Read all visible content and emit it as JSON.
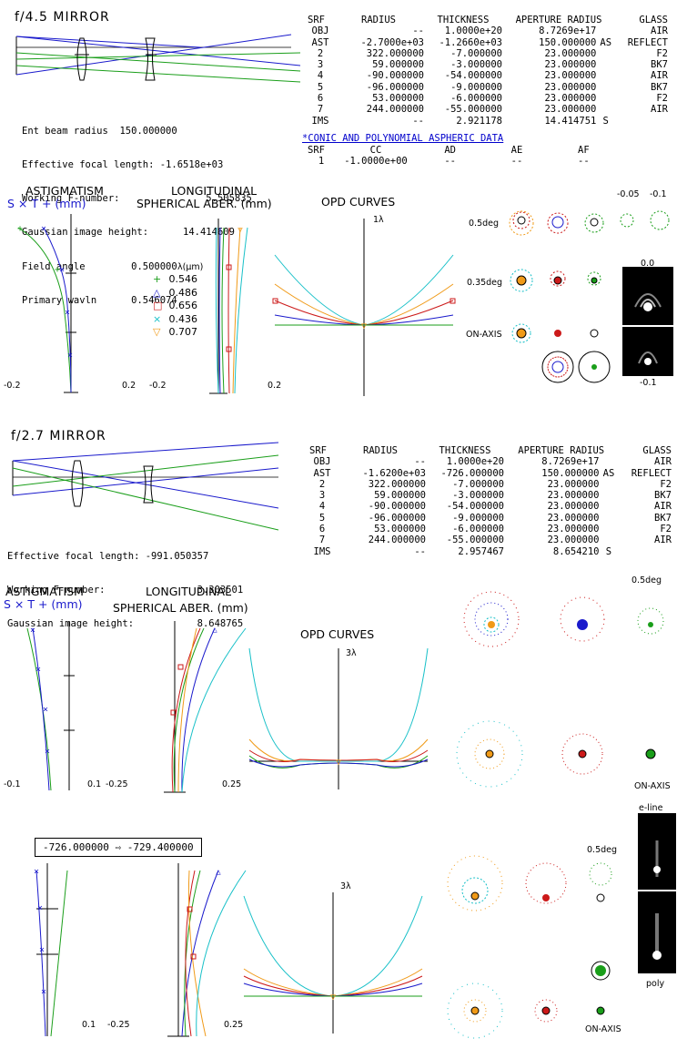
{
  "section1": {
    "title": "f/4.5 MIRROR",
    "specs": [
      {
        "label": "Ent beam radius",
        "value": "150.000000"
      },
      {
        "label": "Effective focal length:",
        "value": "-1.6518e+03"
      },
      {
        "label": "Working F-number:",
        "value": "5.505835"
      },
      {
        "label": "Gaussian image height:",
        "value": "14.414609"
      },
      {
        "label": "Field angle",
        "value": "0.500000"
      },
      {
        "label": "Primary wavln",
        "value": "0.546074"
      }
    ],
    "table_headers": [
      "SRF",
      "RADIUS",
      "THICKNESS",
      "APERTURE RADIUS",
      "GLASS"
    ],
    "table_rows": [
      [
        "OBJ",
        "--",
        "1.0000e+20",
        "8.7269e+17",
        "",
        "AIR"
      ],
      [
        "AST",
        "-2.7000e+03",
        "-1.2660e+03",
        "150.000000",
        "AS",
        "REFLECT"
      ],
      [
        "2",
        "322.000000",
        "-7.000000",
        "23.000000",
        "",
        "F2"
      ],
      [
        "3",
        "59.000000",
        "-3.000000",
        "23.000000",
        "",
        "BK7"
      ],
      [
        "4",
        "-90.000000",
        "-54.000000",
        "23.000000",
        "",
        "AIR"
      ],
      [
        "5",
        "-96.000000",
        "-9.000000",
        "23.000000",
        "",
        "BK7"
      ],
      [
        "6",
        "53.000000",
        "-6.000000",
        "23.000000",
        "",
        "F2"
      ],
      [
        "7",
        "244.000000",
        "-55.000000",
        "23.000000",
        "",
        "AIR"
      ],
      [
        "IMS",
        "--",
        "2.921178",
        "14.414751",
        "S",
        ""
      ]
    ],
    "conic_title": "*CONIC AND POLYNOMIAL ASPHERIC DATA",
    "conic_headers": [
      "SRF",
      "CC",
      "AD",
      "AE",
      "AF"
    ],
    "conic_row": [
      "1",
      "-1.0000e+00",
      "--",
      "--",
      "--"
    ],
    "astig_title_1": "ASTIGMATISM",
    "astig_title_2": "S × T + (mm)",
    "long_title_1": "LONGITUDINAL",
    "long_title_2": "SPHERICAL ABER. (mm)",
    "opd_title": "OPD CURVES",
    "opd_scale": "1λ",
    "astig_ticks": [
      "-0.2",
      "0.2"
    ],
    "long_ticks": [
      "-0.2",
      "0.2"
    ],
    "legend_title": "λ(μm)",
    "legend": [
      {
        "symbol": "+",
        "label": "0.546",
        "color": "#1a9e1a"
      },
      {
        "symbol": "△",
        "label": "0.486",
        "color": "#1a1acc"
      },
      {
        "symbol": "□",
        "label": "0.656",
        "color": "#cc1a1a"
      },
      {
        "symbol": "×",
        "label": "0.436",
        "color": "#18c0c8"
      },
      {
        "symbol": "▽",
        "label": "0.707",
        "color": "#f09a18"
      }
    ],
    "spot_labels": [
      "0.5deg",
      "0.35deg",
      "ON-AXIS"
    ],
    "defocus_labels": [
      "-0.05",
      "-0.1"
    ],
    "psf_labels": [
      "0.0",
      "-0.1"
    ]
  },
  "section2": {
    "title": "f/2.7 MIRROR",
    "specs": [
      {
        "label": "Effective focal length:",
        "value": "-991.050357"
      },
      {
        "label": "Working F-number:",
        "value": "3.303501"
      },
      {
        "label": "Gaussian image height:",
        "value": "8.648765"
      }
    ],
    "table_headers": [
      "SRF",
      "RADIUS",
      "THICKNESS",
      "APERTURE RADIUS",
      "GLASS"
    ],
    "table_rows": [
      [
        "OBJ",
        "--",
        "1.0000e+20",
        "8.7269e+17",
        "",
        "AIR"
      ],
      [
        "AST",
        "-1.6200e+03",
        "-726.000000",
        "150.000000",
        "AS",
        "REFLECT"
      ],
      [
        "2",
        "322.000000",
        "-7.000000",
        "23.000000",
        "",
        "F2"
      ],
      [
        "3",
        "59.000000",
        "-3.000000",
        "23.000000",
        "",
        "BK7"
      ],
      [
        "4",
        "-90.000000",
        "-54.000000",
        "23.000000",
        "",
        "AIR"
      ],
      [
        "5",
        "-96.000000",
        "-9.000000",
        "23.000000",
        "",
        "BK7"
      ],
      [
        "6",
        "53.000000",
        "-6.000000",
        "23.000000",
        "",
        "F2"
      ],
      [
        "7",
        "244.000000",
        "-55.000000",
        "23.000000",
        "",
        "AIR"
      ],
      [
        "IMS",
        "--",
        "2.957467",
        "8.654210",
        "S",
        ""
      ]
    ],
    "astig_title_1": "ASTIGMATISM",
    "astig_title_2": "S × T + (mm)",
    "long_title_1": "LONGITUDINAL",
    "long_title_2": "SPHERICAL ABER. (mm)",
    "opd_title": "OPD CURVES",
    "opd_scale": "3λ",
    "astig_ticks": [
      "-0.1",
      "0.1"
    ],
    "long_ticks": [
      "-0.25",
      "0.25"
    ],
    "spot_labels": [
      "0.5deg",
      "ON-AXIS"
    ]
  },
  "section3": {
    "change_from": "-726.000000",
    "change_to": "-729.400000",
    "arrow_icon": "⇨",
    "opd_scale": "3λ",
    "astig_ticks": [
      "0.1"
    ],
    "long_ticks": [
      "-0.25",
      "0.25"
    ],
    "spot_labels": [
      "0.5deg",
      "ON-AXIS"
    ],
    "psf_labels": [
      "e-line",
      "poly"
    ]
  },
  "colors": {
    "green": "#1a9e1a",
    "blue": "#1a1acc",
    "red": "#cc1a1a",
    "cyan": "#18c0c8",
    "orange": "#f09a18",
    "link": "#0000cc"
  }
}
